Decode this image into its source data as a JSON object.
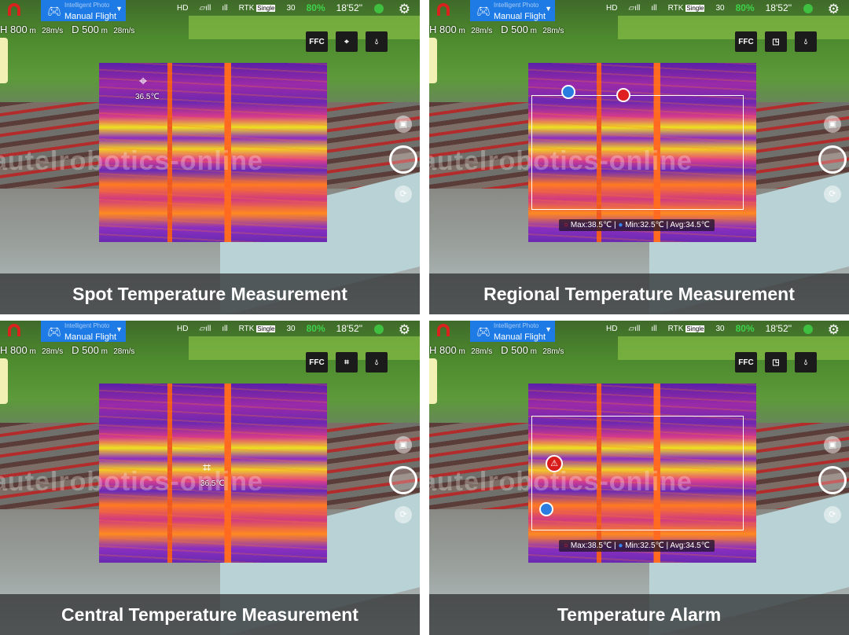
{
  "status": {
    "hd": "HD",
    "image_tx": "▱ıll",
    "rc": "ıll",
    "rtk": "RTK",
    "rtk_mode": "Single",
    "satellites": "30",
    "battery": "80%",
    "flight_time": "18'52''"
  },
  "mode_button": {
    "subtitle": "Intelligent Photo",
    "label": "Manual Flight"
  },
  "telemetry": {
    "height": "800",
    "height_unit": "m",
    "h_speed": "28m/s",
    "distance": "500",
    "distance_unit": "m",
    "v_speed": "28m/s"
  },
  "tools": {
    "ffc": "FFC"
  },
  "watermark": "autelrobotics-online",
  "panels": [
    {
      "caption": "Spot Temperature Measurement",
      "spot_temp": "36.5℃"
    },
    {
      "caption": "Regional Temperature Measurement",
      "max": "Max:38.5℃",
      "min": "Min:32.5℃",
      "avg": "Avg:34.5℃"
    },
    {
      "caption": "Central Temperature Measurement",
      "center_temp": "36.5℃"
    },
    {
      "caption": "Temperature Alarm",
      "max": "Max:38.5℃",
      "min": "Min:32.5℃",
      "avg": "Avg:34.5℃"
    }
  ],
  "colors": {
    "mode_blue": "#1e7be6",
    "battery_green": "#3fd14a",
    "max_marker": "#e02020",
    "min_marker": "#2a7de0"
  }
}
